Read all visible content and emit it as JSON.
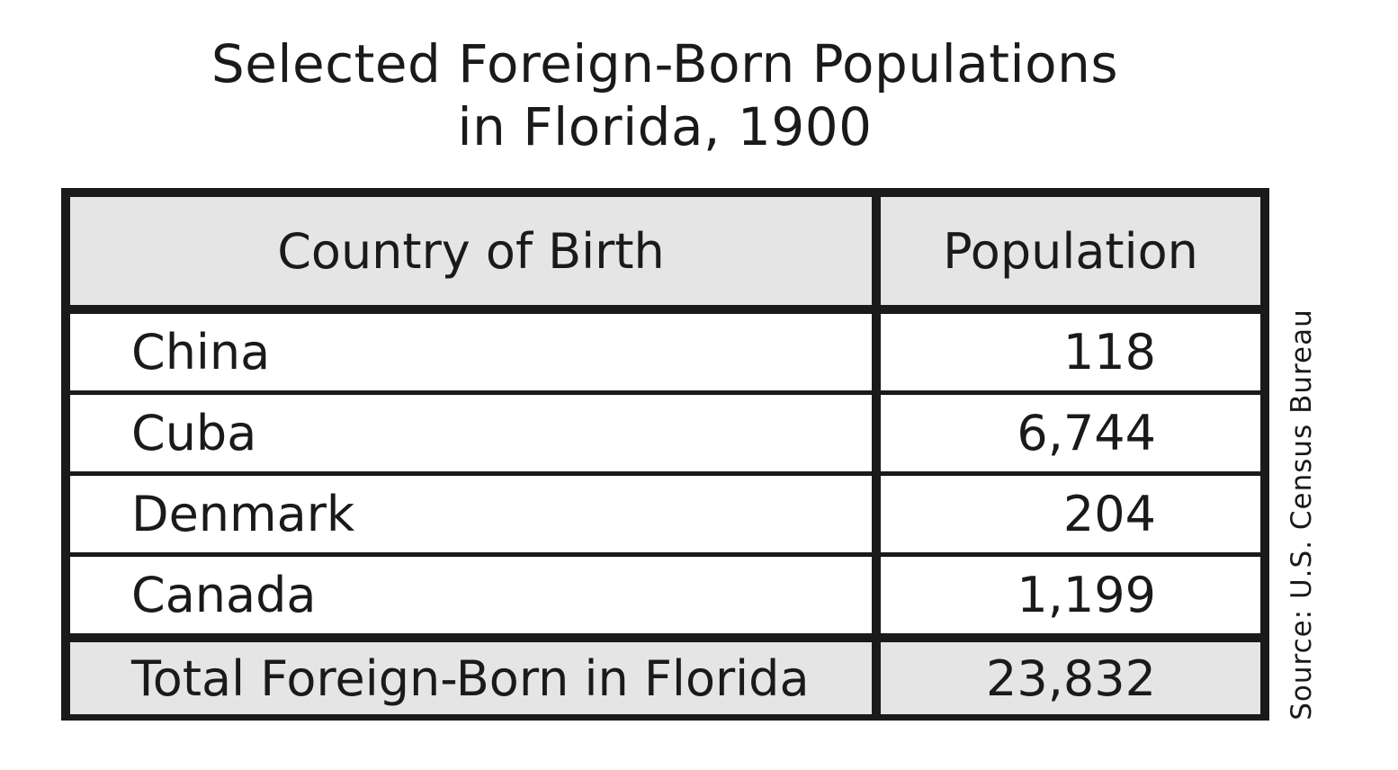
{
  "chart_data": {
    "type": "table",
    "title_line1": "Selected Foreign-Born Populations",
    "title_line2": "in Florida, 1900",
    "columns": [
      "Country of Birth",
      "Population"
    ],
    "rows": [
      {
        "country": "China",
        "population": "118"
      },
      {
        "country": "Cuba",
        "population": "6,744"
      },
      {
        "country": "Denmark",
        "population": "204"
      },
      {
        "country": "Canada",
        "population": "1,199"
      }
    ],
    "total": {
      "label": "Total Foreign-Born in Florida",
      "population": "23,832"
    },
    "source": "Source: U.S. Census Bureau"
  }
}
